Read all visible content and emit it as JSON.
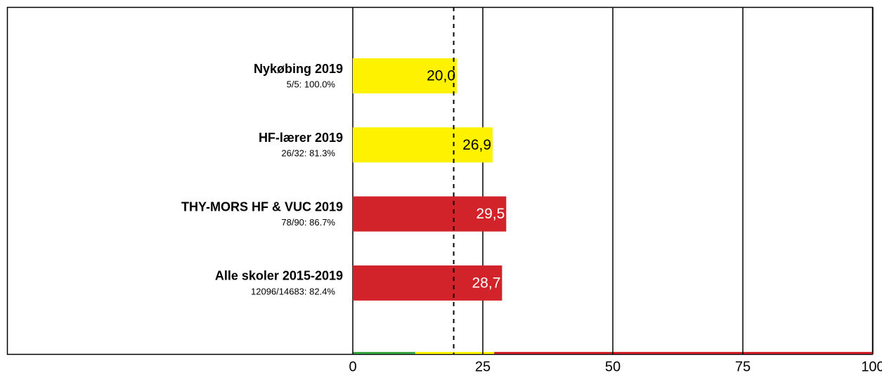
{
  "chart_data": {
    "type": "hbar",
    "categories": [
      "Nykøbing 2019",
      "HF-lærer 2019",
      "THY-MORS HF & VUC 2019",
      "Alle skoler 2015-2019"
    ],
    "sublabels": [
      "5/5: 100.0%",
      "26/32: 81.3%",
      "78/90: 86.7%",
      "12096/14683: 82.4%"
    ],
    "values": [
      20.0,
      26.9,
      29.5,
      28.7
    ],
    "value_labels": [
      "20,0",
      "26,9",
      "29,5",
      "28,7"
    ],
    "colors": [
      "#fff200",
      "#fff200",
      "#d2232a",
      "#d2232a"
    ],
    "value_label_colors": [
      "#000000",
      "#000000",
      "#ffffff",
      "#ffffff"
    ],
    "xlim": [
      0,
      100
    ],
    "xticks": [
      0,
      25,
      50,
      75,
      100
    ],
    "grid": true,
    "reference_line": 19.4,
    "bands": [
      {
        "from": 0,
        "to": 12,
        "color": "#3aa845"
      },
      {
        "from": 12,
        "to": 27.2,
        "color": "#fff200"
      },
      {
        "from": 27.2,
        "to": 100,
        "color": "#d2232a"
      }
    ]
  }
}
